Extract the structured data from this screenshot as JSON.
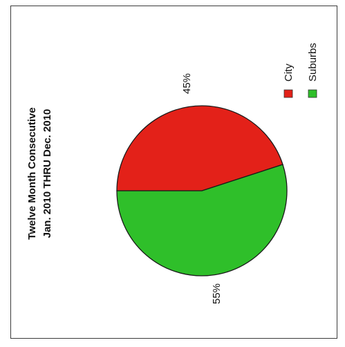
{
  "chart_data": {
    "type": "pie",
    "title_lines": [
      "Twelve Month Consecutive",
      "Jan. 2010 THRU Dec. 2010"
    ],
    "categories": [
      "City",
      "Suburbs"
    ],
    "values": [
      45,
      55
    ],
    "value_labels": [
      "45%",
      "55%"
    ],
    "colors": [
      "#e32119",
      "#2fbf2a"
    ],
    "legend": {
      "placement": "right",
      "entries": [
        "City",
        "Suburbs"
      ]
    },
    "orientation": "rotated-90-ccw"
  }
}
